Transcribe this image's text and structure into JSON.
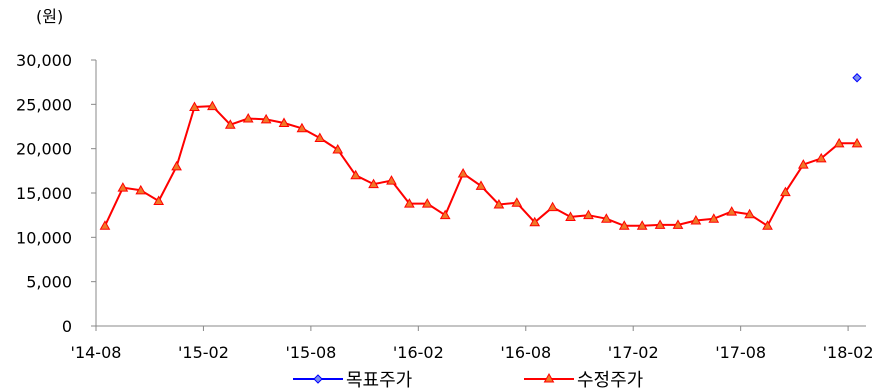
{
  "chart_data": {
    "type": "line",
    "unit_label": "(원)",
    "y_ticks": [
      "30,000",
      "25,000",
      "20,000",
      "15,000",
      "10,000",
      "5,000",
      "0"
    ],
    "y_tick_values": [
      30000,
      25000,
      20000,
      15000,
      10000,
      5000,
      0
    ],
    "ylim": [
      0,
      30000
    ],
    "x_tick_labels": [
      "'14-08",
      "'15-02",
      "'15-08",
      "'16-02",
      "'16-08",
      "'17-02",
      "'17-08",
      "'18-02"
    ],
    "x_tick_index": [
      0,
      6,
      12,
      18,
      24,
      30,
      36,
      42
    ],
    "x_range_index": [
      0,
      43
    ],
    "grid": false,
    "legend_position": "bottom",
    "series": [
      {
        "name": "목표주가",
        "color": "#0000FF",
        "fill": "#7B8EF0",
        "marker": "diamond",
        "points": [
          {
            "index": 42,
            "value": 28000
          }
        ]
      },
      {
        "name": "수정주가",
        "color": "#FF0000",
        "fill": "#F07828",
        "marker": "triangle",
        "values": [
          11300,
          15600,
          15300,
          14100,
          18000,
          24700,
          24800,
          22700,
          23400,
          23300,
          22900,
          22300,
          21200,
          19900,
          17000,
          16000,
          16400,
          13800,
          13800,
          12500,
          17200,
          15800,
          13700,
          13900,
          11700,
          13400,
          12300,
          12500,
          12100,
          11300,
          11300,
          11400,
          11400,
          11900,
          12100,
          12900,
          12600,
          11300,
          15100,
          18200,
          18900,
          20600,
          20600
        ]
      }
    ]
  }
}
